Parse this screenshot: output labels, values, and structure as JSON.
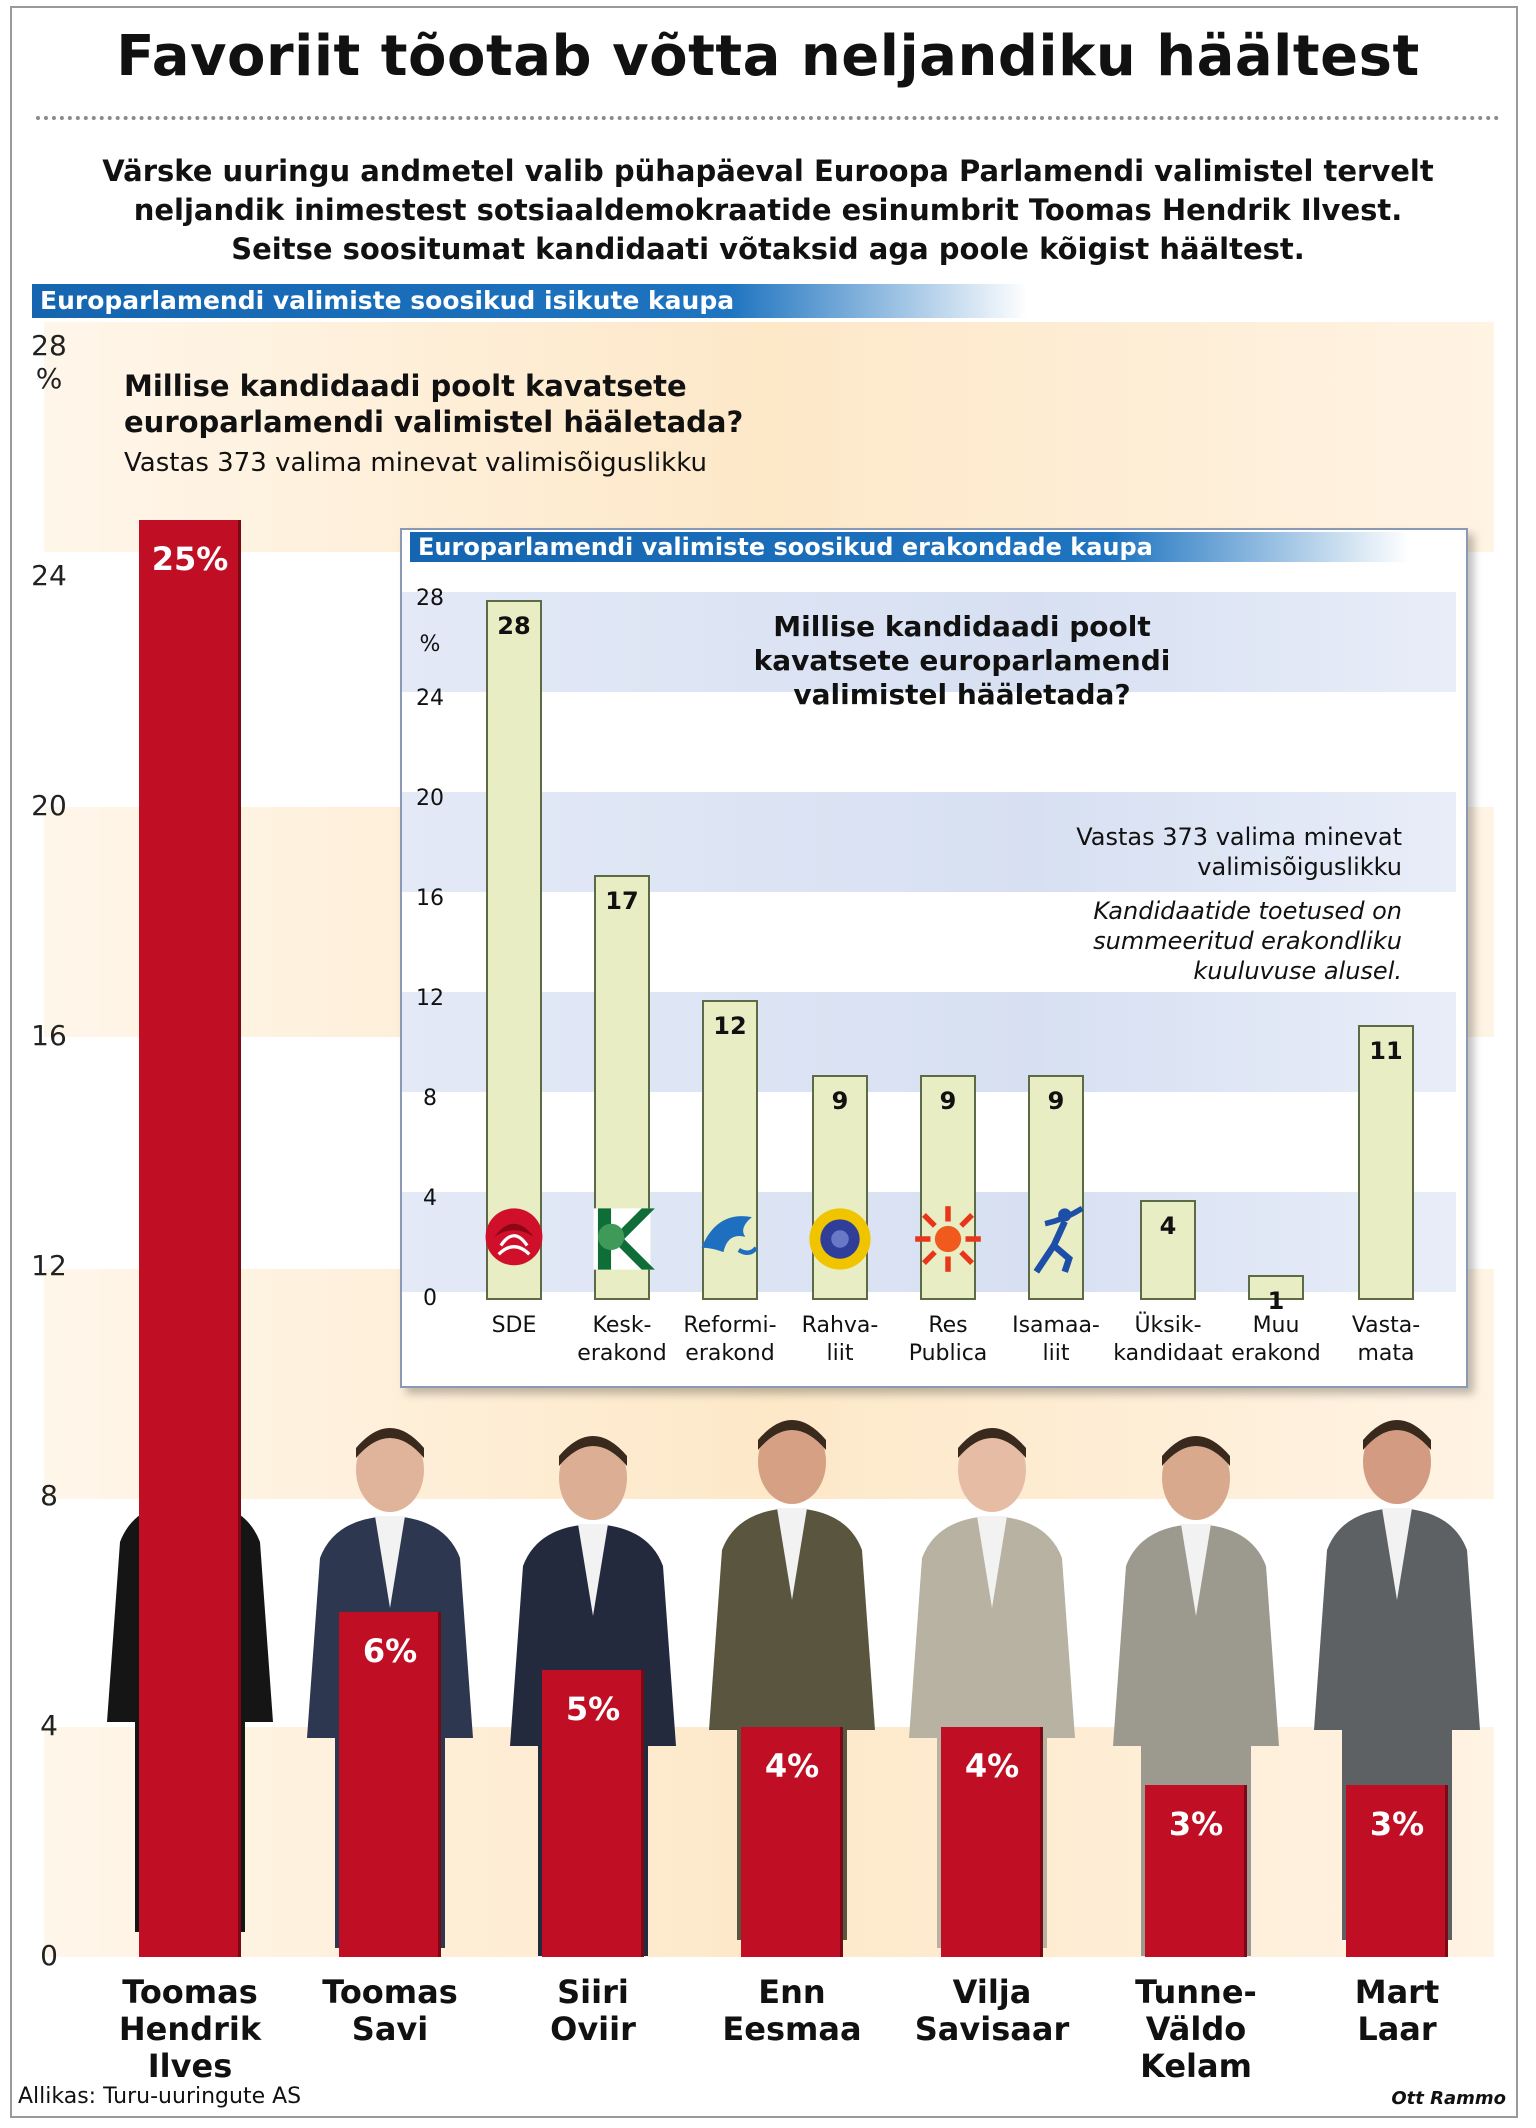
{
  "title": "Favoriit tõotab võtta neljandiku häältest",
  "intro": "Värske uuringu andmetel valib pühapäeval Euroopa Parlamendi valimistel tervelt neljandik inimestest sotsiaaldemokraatide esinumbrit Toomas Hendrik Ilvest. Seitse soositumat kandidaati võtaksid aga poole kõigist häältest.",
  "source": "Allikas: Turu-uuringute AS",
  "author": "Ott Rammo",
  "colors": {
    "bar": "#c00e24",
    "accent": "#1565b0",
    "inset_bar": "#e8edc4"
  },
  "chart_data": [
    {
      "type": "bar",
      "heading": "Europarlamendi valimiste soosikud isikute kaupa",
      "title": "Millise kandidaadi poolt kavatsete europarlamendi valimistel hääletada?",
      "subtitle": "Vastas 373 valima minevat valimisõiguslikku",
      "ylabel": "%",
      "ylim": [
        0,
        28
      ],
      "yticks": [
        0,
        4,
        8,
        12,
        16,
        20,
        24,
        28
      ],
      "categories": [
        "Toomas Hendrik Ilves",
        "Toomas Savi",
        "Siiri Oviir",
        "Enn Eesmaa",
        "Vilja Savisaar",
        "Tunne-Väldo Kelam",
        "Mart Laar"
      ],
      "category_lines": [
        [
          "Toomas",
          "Hendrik",
          "Ilves"
        ],
        [
          "Toomas",
          "Savi"
        ],
        [
          "Siiri",
          "Oviir"
        ],
        [
          "Enn",
          "Eesmaa"
        ],
        [
          "Vilja",
          "Savisaar"
        ],
        [
          "Tunne-",
          "Väldo",
          "Kelam"
        ],
        [
          "Mart",
          "Laar"
        ]
      ],
      "values": [
        25,
        6,
        5,
        4,
        4,
        3,
        3
      ],
      "value_labels": [
        "25%",
        "6%",
        "5%",
        "4%",
        "4%",
        "3%",
        "3%"
      ]
    },
    {
      "type": "bar",
      "heading": "Europarlamendi valimiste soosikud erakondade kaupa",
      "title": "Millise kandidaadi poolt kavatsete europarlamendi valimistel hääletada?",
      "note_1": "Vastas 373 valima minevat valimisõiguslikku",
      "note_2": "Kandidaatide toetused on summeeritud erakondliku kuuluvuse alusel.",
      "ylabel": "%",
      "ylim": [
        0,
        28
      ],
      "yticks": [
        0,
        4,
        8,
        12,
        16,
        20,
        24,
        28
      ],
      "categories": [
        "SDE",
        "Keskerakond",
        "Reformierakond",
        "Rahvaliit",
        "Res Publica",
        "Isamaaliit",
        "Üksikkandidaat",
        "Muu erakond",
        "Vastamata"
      ],
      "category_lines": [
        [
          "SDE"
        ],
        [
          "Kesk-",
          "erakond"
        ],
        [
          "Reformi-",
          "erakond"
        ],
        [
          "Rahva-",
          "liit"
        ],
        [
          "Res",
          "Publica"
        ],
        [
          "Isamaa-",
          "liit"
        ],
        [
          "Üksik-",
          "kandidaat"
        ],
        [
          "Muu",
          "erakond"
        ],
        [
          "Vasta-",
          "mata"
        ]
      ],
      "values": [
        28,
        17,
        12,
        9,
        9,
        9,
        4,
        1,
        11
      ],
      "logos": [
        "rose-logo-icon",
        "keskerakond-logo-icon",
        "reform-squirrel-logo-icon",
        "rahvaliit-sun-logo-icon",
        "respublica-sun-logo-icon",
        "isamaaliit-figure-logo-icon",
        "",
        "",
        ""
      ]
    }
  ]
}
